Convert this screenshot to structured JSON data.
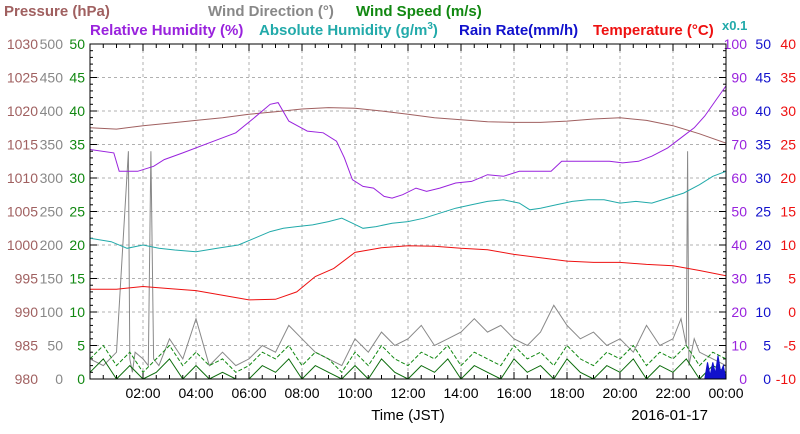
{
  "chart_data": {
    "type": "line",
    "legend": [
      {
        "label": "Pressure (hPa)",
        "color": "#a06060"
      },
      {
        "label": "Wind Direction (°)",
        "color": "#888888"
      },
      {
        "label": "Wind Speed (m/s)",
        "color": "#118811"
      },
      {
        "label": "Relative Humidity (%)",
        "color": "#9922dd"
      },
      {
        "label": "Absolute Humidity (g/m",
        "label_sup": "3",
        "label_tail": ")",
        "color": "#22aaaa"
      },
      {
        "label": "Rain Rate(mm/h)",
        "color": "#1111cc"
      },
      {
        "label": "Temperature (°C)",
        "color": "#ee1111"
      }
    ],
    "scale_note": "x0.1",
    "xlabel": "Time (JST)",
    "date": "2016-01-17",
    "x_ticks": [
      "02:00",
      "04:00",
      "06:00",
      "08:00",
      "10:00",
      "12:00",
      "14:00",
      "16:00",
      "18:00",
      "20:00",
      "22:00",
      "00:00"
    ],
    "x_range_hours": [
      0,
      24
    ],
    "axes": {
      "pressure": {
        "range": [
          980,
          1030
        ],
        "ticks": [
          "1030",
          "1025",
          "1020",
          "1015",
          "1010",
          "1005",
          "1000",
          "995",
          "990",
          "985",
          "980"
        ],
        "color": "#a06060"
      },
      "wind_direction": {
        "range": [
          0,
          500
        ],
        "ticks": [
          "500",
          "450",
          "400",
          "350",
          "300",
          "250",
          "200",
          "150",
          "100",
          "50",
          "0"
        ],
        "color": "#888888"
      },
      "wind_speed": {
        "range": [
          0,
          50
        ],
        "ticks": [
          "50",
          "45",
          "40",
          "35",
          "30",
          "25",
          "20",
          "15",
          "10",
          "5",
          "0"
        ],
        "color": "#118811"
      },
      "humidity": {
        "range": [
          0,
          100
        ],
        "ticks": [
          "100",
          "90",
          "80",
          "70",
          "60",
          "50",
          "40",
          "30",
          "20",
          "10",
          "0"
        ],
        "color": "#9922dd"
      },
      "rain_rate": {
        "range": [
          0,
          50
        ],
        "ticks": [
          "50",
          "45",
          "40",
          "35",
          "30",
          "25",
          "20",
          "15",
          "10",
          "5",
          "0"
        ],
        "color": "#1111cc"
      },
      "temperature": {
        "range": [
          -10,
          40
        ],
        "ticks": [
          "40",
          "35",
          "30",
          "25",
          "20",
          "15",
          "10",
          "5",
          "0",
          "-5",
          "-10"
        ],
        "color": "#ee1111"
      }
    },
    "series": [
      {
        "name": "Pressure (hPa)",
        "axis": "pressure",
        "color": "#a06060",
        "x": [
          0,
          1,
          2,
          3,
          4,
          5,
          6,
          7,
          8,
          9,
          10,
          11,
          12,
          13,
          14,
          15,
          16,
          17,
          18,
          19,
          20,
          21,
          22,
          23,
          24
        ],
        "y": [
          1017.5,
          1017.3,
          1017.8,
          1018.2,
          1018.6,
          1019.0,
          1019.5,
          1019.9,
          1020.3,
          1020.5,
          1020.4,
          1020.0,
          1019.5,
          1019.0,
          1018.7,
          1018.4,
          1018.3,
          1018.3,
          1018.5,
          1018.8,
          1019.0,
          1018.6,
          1017.8,
          1016.6,
          1015.2
        ]
      },
      {
        "name": "Wind Direction (°)",
        "axis": "wind_direction",
        "color": "#888888",
        "x": [
          0,
          0.5,
          1,
          1.45,
          1.5,
          1.6,
          1.7,
          2,
          2.2,
          2.3,
          2.4,
          2.6,
          3,
          3.5,
          4,
          4.5,
          5,
          5.5,
          6,
          6.5,
          7,
          7.5,
          8,
          8.5,
          9,
          9.5,
          10,
          10.5,
          11,
          11.5,
          12,
          12.5,
          13,
          13.5,
          14,
          14.5,
          15,
          15.5,
          16,
          16.5,
          17,
          17.5,
          18,
          18.5,
          19,
          19.5,
          20,
          20.5,
          21,
          21.5,
          22,
          22.3,
          22.5,
          22.55,
          22.6,
          22.8,
          23,
          23.5,
          24
        ],
        "y": [
          30,
          20,
          40,
          340,
          30,
          10,
          40,
          30,
          20,
          340,
          30,
          20,
          60,
          30,
          90,
          20,
          40,
          20,
          30,
          50,
          40,
          80,
          60,
          40,
          30,
          20,
          60,
          40,
          70,
          50,
          60,
          80,
          50,
          60,
          70,
          90,
          70,
          80,
          60,
          50,
          70,
          110,
          80,
          60,
          70,
          50,
          60,
          40,
          80,
          50,
          60,
          90,
          50,
          340,
          20,
          60,
          40,
          30,
          20
        ]
      },
      {
        "name": "Wind Speed (m/s)",
        "axis": "wind_speed",
        "color": "#118811",
        "x": [
          0,
          0.5,
          1,
          1.5,
          2,
          2.5,
          3,
          3.5,
          4,
          4.5,
          5,
          5.5,
          6,
          6.5,
          7,
          7.5,
          8,
          8.5,
          9,
          9.5,
          10,
          10.5,
          11,
          11.5,
          12,
          12.5,
          13,
          13.5,
          14,
          14.5,
          15,
          15.5,
          16,
          16.5,
          17,
          17.5,
          18,
          18.5,
          19,
          19.5,
          20,
          20.5,
          21,
          21.5,
          22,
          22.5,
          23,
          23.5,
          24
        ],
        "y": [
          3,
          5,
          2,
          4,
          1,
          3,
          5,
          2,
          4,
          2,
          3,
          1,
          2,
          4,
          3,
          5,
          2,
          4,
          3,
          1,
          4,
          2,
          5,
          3,
          2,
          4,
          3,
          5,
          2,
          4,
          3,
          2,
          5,
          3,
          4,
          2,
          5,
          3,
          2,
          4,
          3,
          5,
          2,
          4,
          3,
          5,
          2,
          4,
          3
        ]
      },
      {
        "name": "Relative Humidity (%)",
        "axis": "humidity",
        "color": "#9922dd",
        "x": [
          0,
          0.9,
          1.1,
          1.8,
          2.4,
          2.8,
          3.5,
          4.5,
          5.5,
          6.2,
          6.8,
          7.1,
          7.5,
          8.2,
          8.8,
          9.3,
          9.6,
          9.9,
          10.3,
          10.7,
          11.1,
          11.4,
          11.8,
          12.3,
          12.7,
          13.2,
          13.8,
          14.4,
          15.0,
          15.6,
          16.2,
          16.8,
          17.4,
          17.8,
          18.4,
          19.0,
          19.6,
          20.1,
          20.7,
          21.2,
          21.8,
          22.3,
          22.8,
          23.2,
          23.6,
          24.0
        ],
        "y": [
          68.5,
          67.5,
          62,
          62,
          63.5,
          65.5,
          67.5,
          70.5,
          73.5,
          78,
          82,
          82.5,
          77,
          74,
          73.5,
          71,
          66,
          59.5,
          57.5,
          57,
          54.5,
          54,
          55,
          57,
          56,
          57,
          58.5,
          59,
          61,
          60.5,
          62,
          62,
          62,
          65,
          65,
          65,
          65,
          64.5,
          65,
          66.5,
          69,
          72,
          75,
          78.5,
          83,
          87.5
        ]
      },
      {
        "name": "Absolute Humidity (g/m3)",
        "axis": "humidity",
        "color": "#22aaaa",
        "x": [
          0,
          0.8,
          1.4,
          2,
          2.6,
          3.2,
          4,
          4.8,
          5.6,
          6.2,
          6.8,
          7.3,
          7.8,
          8.4,
          9,
          9.5,
          9.9,
          10.3,
          10.8,
          11.4,
          12,
          12.6,
          13.2,
          13.8,
          14.4,
          15,
          15.6,
          16.2,
          16.6,
          17,
          17.6,
          18.2,
          18.8,
          19.4,
          20,
          20.6,
          21.2,
          21.8,
          22.4,
          23,
          23.5,
          24
        ],
        "y": [
          42,
          41,
          39,
          40,
          39,
          38.5,
          38,
          39,
          40,
          42,
          44,
          45,
          45.5,
          46,
          47,
          48,
          46.5,
          45,
          45.5,
          46.5,
          47,
          48,
          49.5,
          51,
          52,
          53,
          53.5,
          52.5,
          50.5,
          51,
          52,
          53,
          53.5,
          53.5,
          52.5,
          53,
          52.5,
          54,
          55.5,
          58,
          60.5,
          62
        ]
      },
      {
        "name": "Rain Rate(mm/h)",
        "axis": "rain_rate",
        "color": "#1111cc",
        "x": [
          23.2,
          23.3,
          23.4,
          23.5,
          23.6,
          23.7,
          23.8,
          23.9,
          24
        ],
        "y": [
          0,
          2.5,
          0.5,
          2.5,
          0.8,
          3.5,
          1,
          2,
          0
        ]
      },
      {
        "name": "Temperature (°C)",
        "axis": "temperature",
        "color": "#ee1111",
        "x": [
          0,
          1,
          2,
          3,
          4,
          5,
          6,
          7,
          7.8,
          8.5,
          9.2,
          10,
          11,
          12,
          13,
          14,
          15,
          16,
          17,
          18,
          19,
          20,
          21,
          22,
          23,
          24
        ],
        "y": [
          3.4,
          3.4,
          3.8,
          3.5,
          3.2,
          2.5,
          1.8,
          1.9,
          3.0,
          5.3,
          6.5,
          8.9,
          9.6,
          9.9,
          9.8,
          9.5,
          9.3,
          8.6,
          8.1,
          7.6,
          7.4,
          7.4,
          7.1,
          6.9,
          6.2,
          5.4
        ]
      }
    ]
  }
}
